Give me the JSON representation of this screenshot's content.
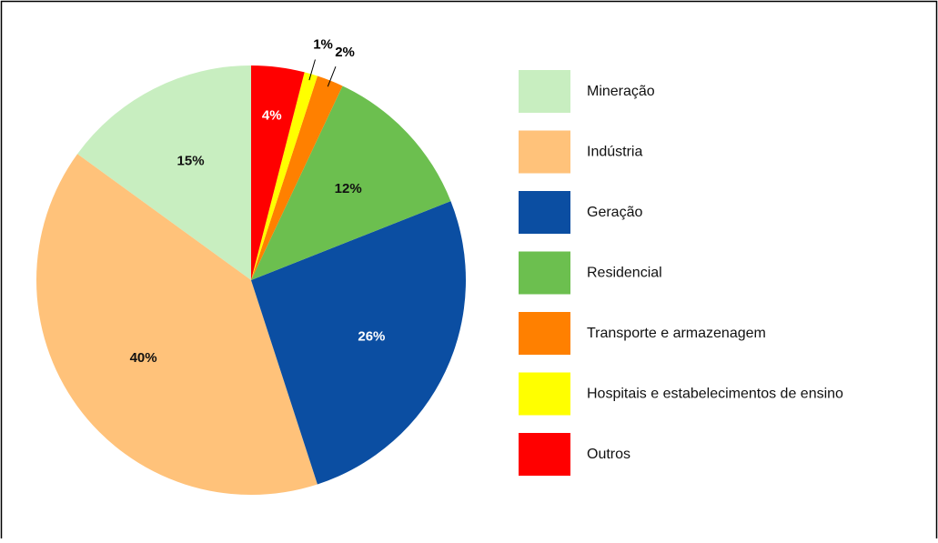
{
  "chart_data": {
    "type": "pie",
    "categories": [
      "Mineração",
      "Indústria",
      "Geração",
      "Residencial",
      "Transporte e armazenagem",
      "Hospitais e estabelecimentos de ensino",
      "Outros"
    ],
    "values": [
      15,
      40,
      26,
      12,
      2,
      1,
      4
    ],
    "value_labels": [
      "15%",
      "40%",
      "26%",
      "12%",
      "2%",
      "1%",
      "4%"
    ],
    "colors": [
      "#c8eec0",
      "#ffc27a",
      "#0b4ea2",
      "#6cbf4f",
      "#ff8000",
      "#ffff00",
      "#ff0000"
    ],
    "legend": "right"
  }
}
